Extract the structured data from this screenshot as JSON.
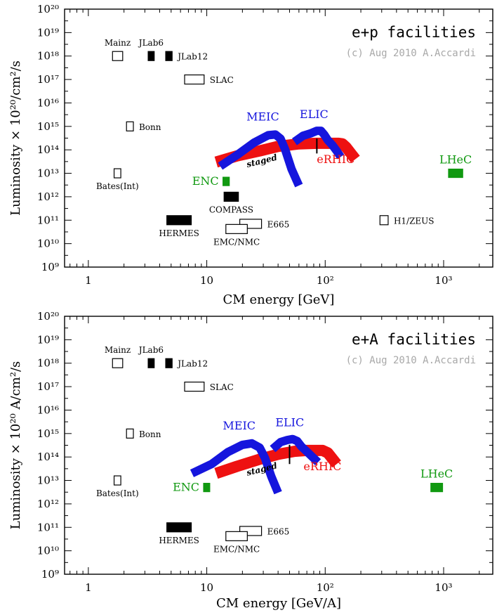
{
  "colors": {
    "red": "#ee1111",
    "blue": "#1515dd",
    "green": "#119911",
    "black": "#000000",
    "credit": "#a8a8a8"
  },
  "chart_data": [
    {
      "type": "scatter",
      "title": "e+p facilities",
      "credit": "(c) Aug 2010 A.Accardi",
      "xlabel": "CM energy [GeV]",
      "ylabel": "Luminosity × 10²⁰/cm²/s",
      "xscale": "log",
      "yscale": "log",
      "xlim": [
        0.63,
        2600
      ],
      "ylim": [
        1000000000.0,
        1e+20
      ],
      "x_ticks": [
        {
          "value": 1,
          "label": "1"
        },
        {
          "value": 10,
          "label": "10"
        },
        {
          "value": 100,
          "label": "10²"
        },
        {
          "value": 1000,
          "label": "10³"
        }
      ],
      "y_ticks": [
        {
          "value": 1000000000.0,
          "label": "10⁹"
        },
        {
          "value": 10000000000.0,
          "label": "10¹⁰"
        },
        {
          "value": 100000000000.0,
          "label": "10¹¹"
        },
        {
          "value": 1000000000000.0,
          "label": "10¹²"
        },
        {
          "value": 10000000000000.0,
          "label": "10¹³"
        },
        {
          "value": 100000000000000.0,
          "label": "10¹⁴"
        },
        {
          "value": 1000000000000000.0,
          "label": "10¹⁵"
        },
        {
          "value": 1e+16,
          "label": "10¹⁶"
        },
        {
          "value": 1e+17,
          "label": "10¹⁷"
        },
        {
          "value": 1e+18,
          "label": "10¹⁸"
        },
        {
          "value": 1e+19,
          "label": "10¹⁹"
        },
        {
          "value": 1e+20,
          "label": "10²⁰"
        }
      ],
      "facilities": [
        {
          "name": "Mainz",
          "label": "Mainz",
          "x": [
            1.6,
            1.95
          ],
          "y": 1e+18,
          "style": "open",
          "color": "black",
          "label_pos": "above"
        },
        {
          "name": "JLab6",
          "label": "JLab6",
          "x": [
            3.2,
            3.6
          ],
          "y": 1e+18,
          "style": "filled",
          "color": "black",
          "label_pos": "above"
        },
        {
          "name": "JLab12",
          "label": "JLab12",
          "x": [
            4.5,
            5.1
          ],
          "y": 1e+18,
          "style": "filled",
          "color": "black",
          "label_pos": "right"
        },
        {
          "name": "SLAC",
          "label": "SLAC",
          "x": [
            6.5,
            9.5
          ],
          "y": 1e+17,
          "style": "open",
          "color": "black",
          "label_pos": "right"
        },
        {
          "name": "Bonn",
          "label": "Bonn",
          "x": [
            2.1,
            2.4
          ],
          "y": 1000000000000000.0,
          "style": "open",
          "color": "black",
          "label_pos": "right"
        },
        {
          "name": "Bates",
          "label": "Bates(Int)",
          "x": [
            1.65,
            1.88
          ],
          "y": 10000000000000.0,
          "style": "open",
          "color": "black",
          "label_pos": "below"
        },
        {
          "name": "ENC",
          "label": "ENC",
          "x": [
            13.7,
            15.5
          ],
          "y": 4500000000000.0,
          "style": "filled",
          "color": "green",
          "label_pos": "left"
        },
        {
          "name": "COMPASS",
          "label": "COMPASS",
          "x": [
            14,
            18.5
          ],
          "y": 1000000000000.0,
          "style": "filled",
          "color": "black",
          "label_pos": "below"
        },
        {
          "name": "HERMES",
          "label": "HERMES",
          "x": [
            4.6,
            7.4
          ],
          "y": 100000000000.0,
          "style": "filled",
          "color": "black",
          "label_pos": "below"
        },
        {
          "name": "E665",
          "label": "E665",
          "x": [
            19,
            29
          ],
          "y": 70000000000.0,
          "style": "open",
          "color": "black",
          "label_pos": "right"
        },
        {
          "name": "EMC/NMC",
          "label": "EMC/NMC",
          "x": [
            14.5,
            22
          ],
          "y": 42000000000.0,
          "style": "open",
          "color": "black",
          "label_pos": "below"
        },
        {
          "name": "H1/ZEUS",
          "label": "H1/ZEUS",
          "x": [
            290,
            340
          ],
          "y": 100000000000.0,
          "style": "open",
          "color": "black",
          "label_pos": "right"
        },
        {
          "name": "LHeC",
          "label": "LHeC",
          "x": [
            1100,
            1450
          ],
          "y": 10000000000000.0,
          "style": "filled",
          "color": "green",
          "label_pos": "above"
        }
      ],
      "curves": [
        {
          "name": "eRHIC",
          "label": "eRHIC",
          "color": "red",
          "width": 16,
          "x": [
            12,
            18,
            28,
            40,
            60,
            85,
            110,
            130,
            140,
            150,
            180
          ],
          "y": [
            30000000000000.0,
            55000000000000.0,
            90000000000000.0,
            140000000000000.0,
            180000000000000.0,
            190000000000000.0,
            190000000000000.0,
            190000000000000.0,
            180000000000000.0,
            130000000000000.0,
            40000000000000.0
          ],
          "sublabel": "staged"
        },
        {
          "name": "MEIC",
          "label": "MEIC",
          "color": "blue",
          "width": 12,
          "x": [
            13,
            18,
            25,
            33,
            38,
            42,
            46,
            52,
            60
          ],
          "y": [
            20000000000000.0,
            60000000000000.0,
            200000000000000.0,
            420000000000000.0,
            450000000000000.0,
            300000000000000.0,
            100000000000000.0,
            15000000000000.0,
            3000000000000.0
          ]
        },
        {
          "name": "ELIC",
          "label": "ELIC",
          "color": "blue",
          "width": 12,
          "x": [
            55,
            65,
            75,
            85,
            92,
            98,
            105,
            115,
            125,
            135
          ],
          "y": [
            220000000000000.0,
            400000000000000.0,
            500000000000000.0,
            650000000000000.0,
            650000000000000.0,
            450000000000000.0,
            260000000000000.0,
            160000000000000.0,
            90000000000000.0,
            50000000000000.0
          ],
          "marker": {
            "x": 85,
            "y_from": 70000000000000.0,
            "y_to": 300000000000000.0
          }
        }
      ]
    },
    {
      "type": "scatter",
      "title": "e+A facilities",
      "credit": "(c) Aug 2010 A.Accardi",
      "xlabel": "CM energy [GeV/A]",
      "ylabel": "Luminosity × 10²⁰ A/cm²/s",
      "xscale": "log",
      "yscale": "log",
      "xlim": [
        0.63,
        2600
      ],
      "ylim": [
        1000000000.0,
        1e+20
      ],
      "x_ticks": [
        {
          "value": 1,
          "label": "1"
        },
        {
          "value": 10,
          "label": "10"
        },
        {
          "value": 100,
          "label": "10²"
        },
        {
          "value": 1000,
          "label": "10³"
        }
      ],
      "y_ticks": [
        {
          "value": 1000000000.0,
          "label": "10⁹"
        },
        {
          "value": 10000000000.0,
          "label": "10¹⁰"
        },
        {
          "value": 100000000000.0,
          "label": "10¹¹"
        },
        {
          "value": 1000000000000.0,
          "label": "10¹²"
        },
        {
          "value": 10000000000000.0,
          "label": "10¹³"
        },
        {
          "value": 100000000000000.0,
          "label": "10¹⁴"
        },
        {
          "value": 1000000000000000.0,
          "label": "10¹⁵"
        },
        {
          "value": 1e+16,
          "label": "10¹⁶"
        },
        {
          "value": 1e+17,
          "label": "10¹⁷"
        },
        {
          "value": 1e+18,
          "label": "10¹⁸"
        },
        {
          "value": 1e+19,
          "label": "10¹⁹"
        },
        {
          "value": 1e+20,
          "label": "10²⁰"
        }
      ],
      "facilities": [
        {
          "name": "Mainz",
          "label": "Mainz",
          "x": [
            1.6,
            1.95
          ],
          "y": 1e+18,
          "style": "open",
          "color": "black",
          "label_pos": "above"
        },
        {
          "name": "JLab6",
          "label": "JLab6",
          "x": [
            3.2,
            3.6
          ],
          "y": 1e+18,
          "style": "filled",
          "color": "black",
          "label_pos": "above"
        },
        {
          "name": "JLab12",
          "label": "JLab12",
          "x": [
            4.5,
            5.1
          ],
          "y": 1e+18,
          "style": "filled",
          "color": "black",
          "label_pos": "right"
        },
        {
          "name": "SLAC",
          "label": "SLAC",
          "x": [
            6.5,
            9.5
          ],
          "y": 1e+17,
          "style": "open",
          "color": "black",
          "label_pos": "right"
        },
        {
          "name": "Bonn",
          "label": "Bonn",
          "x": [
            2.1,
            2.4
          ],
          "y": 1000000000000000.0,
          "style": "open",
          "color": "black",
          "label_pos": "right"
        },
        {
          "name": "Bates",
          "label": "Bates(Int)",
          "x": [
            1.65,
            1.88
          ],
          "y": 10000000000000.0,
          "style": "open",
          "color": "black",
          "label_pos": "below"
        },
        {
          "name": "ENC",
          "label": "ENC",
          "x": [
            9.4,
            10.6
          ],
          "y": 5000000000000.0,
          "style": "filled",
          "color": "green",
          "label_pos": "left"
        },
        {
          "name": "HERMES",
          "label": "HERMES",
          "x": [
            4.6,
            7.4
          ],
          "y": 100000000000.0,
          "style": "filled",
          "color": "black",
          "label_pos": "below"
        },
        {
          "name": "E665",
          "label": "E665",
          "x": [
            19,
            29
          ],
          "y": 70000000000.0,
          "style": "open",
          "color": "black",
          "label_pos": "right"
        },
        {
          "name": "EMC/NMC",
          "label": "EMC/NMC",
          "x": [
            14.5,
            22
          ],
          "y": 42000000000.0,
          "style": "open",
          "color": "black",
          "label_pos": "below"
        },
        {
          "name": "LHeC",
          "label": "LHeC",
          "x": [
            780,
            980
          ],
          "y": 5000000000000.0,
          "style": "filled",
          "color": "green",
          "label_pos": "above"
        }
      ],
      "curves": [
        {
          "name": "eRHIC",
          "label": "eRHIC",
          "color": "red",
          "width": 16,
          "x": [
            12,
            18,
            28,
            40,
            55,
            70,
            85,
            95,
            105,
            125
          ],
          "y": [
            20000000000000.0,
            40000000000000.0,
            80000000000000.0,
            130000000000000.0,
            175000000000000.0,
            190000000000000.0,
            190000000000000.0,
            190000000000000.0,
            150000000000000.0,
            50000000000000.0
          ],
          "sublabel": "staged"
        },
        {
          "name": "MEIC",
          "label": "MEIC",
          "color": "blue",
          "width": 12,
          "x": [
            7.5,
            11,
            15,
            20,
            24,
            28,
            31,
            35,
            40
          ],
          "y": [
            20000000000000.0,
            50000000000000.0,
            160000000000000.0,
            330000000000000.0,
            380000000000000.0,
            250000000000000.0,
            90000000000000.0,
            15000000000000.0,
            3000000000000.0
          ]
        },
        {
          "name": "ELIC",
          "label": "ELIC",
          "color": "blue",
          "width": 12,
          "x": [
            36,
            42,
            48,
            53,
            58,
            63,
            70,
            78,
            87
          ],
          "y": [
            220000000000000.0,
            430000000000000.0,
            530000000000000.0,
            580000000000000.0,
            480000000000000.0,
            280000000000000.0,
            170000000000000.0,
            100000000000000.0,
            60000000000000.0
          ],
          "marker": {
            "x": 50,
            "y_from": 50000000000000.0,
            "y_to": 330000000000000.0
          }
        }
      ]
    }
  ]
}
